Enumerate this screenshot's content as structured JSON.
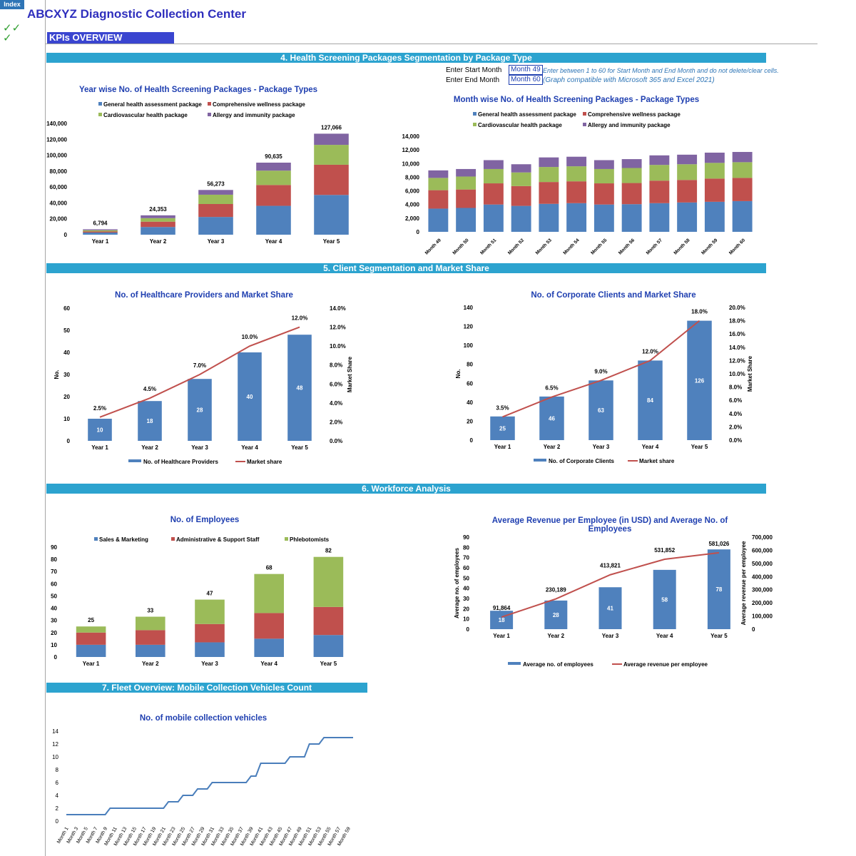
{
  "header": {
    "index_label": "Index",
    "title": "ABCXYZ Diagnostic Collection Center",
    "checkmarks": [
      "✓✓",
      "✓"
    ],
    "kpi_label": "KPIs OVERVIEW"
  },
  "sections": {
    "packages": "4. Health Screening Packages Segmentation by Package Type",
    "clients": "5. Client Segmentation and Market Share",
    "workforce": "6. Workforce Analysis",
    "fleet": "7. Fleet Overview: Mobile Collection Vehicles Count"
  },
  "controls": {
    "start_label": "Enter Start Month",
    "end_label": "Enter End Month",
    "start_value": "Month 49",
    "end_value": "Month 60",
    "note1": "Enter between 1 to 60 for Start Month and End Month and do not delete/clear cells.",
    "note2": "(Graph compatible with Microsoft 365 and Excel 2021)"
  },
  "colors": {
    "blue": "#4f81bd",
    "red": "#c0504d",
    "green": "#9bbb59",
    "purple": "#8064a2",
    "line": "#c0504d",
    "fleet": "#4a7ebb"
  },
  "chart_data": [
    {
      "id": "year_packages",
      "type": "bar",
      "stacked": true,
      "title": "Year wise No. of Health Screening Packages - Package Types",
      "categories": [
        "Year 1",
        "Year 2",
        "Year 3",
        "Year 4",
        "Year 5"
      ],
      "series": [
        {
          "name": "General health assessment package",
          "color": "#4f81bd",
          "values": [
            2700,
            9700,
            22300,
            36300,
            50000
          ]
        },
        {
          "name": "Comprehensive wellness package",
          "color": "#c0504d",
          "values": [
            1400,
            6700,
            16300,
            26200,
            38000
          ]
        },
        {
          "name": "Cardiovascular health package",
          "color": "#9bbb59",
          "values": [
            1500,
            4400,
            11700,
            18100,
            25000
          ]
        },
        {
          "name": "Allergy and immunity package",
          "color": "#8064a2",
          "values": [
            1194,
            3553,
            5973,
            10035,
            14066
          ]
        }
      ],
      "totals": [
        "6,794",
        "24,353",
        "56,273",
        "90,635",
        "127,066"
      ],
      "yticks": [
        "0",
        "20,000",
        "40,000",
        "60,000",
        "80,000",
        "100,000",
        "120,000",
        "140,000"
      ],
      "ylim": [
        0,
        140000
      ]
    },
    {
      "id": "month_packages",
      "type": "bar",
      "stacked": true,
      "title": "Month wise No. of Health Screening Packages - Package Types",
      "categories": [
        "Month 49",
        "Month 50",
        "Month 51",
        "Month 52",
        "Month 53",
        "Month 54",
        "Month 55",
        "Month 56",
        "Month 57",
        "Month 58",
        "Month 59",
        "Month 60"
      ],
      "series": [
        {
          "name": "General health assessment package",
          "color": "#4f81bd",
          "values": [
            3400,
            3500,
            4000,
            3800,
            4100,
            4200,
            4000,
            4050,
            4200,
            4300,
            4400,
            4500
          ]
        },
        {
          "name": "Comprehensive wellness package",
          "color": "#c0504d",
          "values": [
            2700,
            2700,
            3100,
            2900,
            3200,
            3200,
            3100,
            3100,
            3300,
            3300,
            3400,
            3400
          ]
        },
        {
          "name": "Cardiovascular health package",
          "color": "#9bbb59",
          "values": [
            1800,
            1900,
            2100,
            2000,
            2200,
            2200,
            2100,
            2200,
            2300,
            2300,
            2300,
            2300
          ]
        },
        {
          "name": "Allergy and immunity package",
          "color": "#8064a2",
          "values": [
            1100,
            1100,
            1300,
            1200,
            1400,
            1400,
            1300,
            1300,
            1400,
            1400,
            1500,
            1500
          ]
        }
      ],
      "yticks": [
        "0",
        "2,000",
        "4,000",
        "6,000",
        "8,000",
        "10,000",
        "12,000",
        "14,000"
      ],
      "ylim": [
        0,
        14000
      ]
    },
    {
      "id": "providers",
      "type": "bar",
      "title": "No. of Healthcare Providers and Market Share",
      "categories": [
        "Year 1",
        "Year 2",
        "Year 3",
        "Year 4",
        "Year 5"
      ],
      "bar_name": "No. of Healthcare Providers",
      "values": [
        10,
        18,
        28,
        40,
        48
      ],
      "line_name": "Market share",
      "line_values": [
        2.5,
        4.5,
        7.0,
        10.0,
        12.0
      ],
      "line_labels": [
        "2.5%",
        "4.5%",
        "7.0%",
        "10.0%",
        "12.0%"
      ],
      "ylabel": "No.",
      "y2label": "Market Share",
      "yticks": [
        "0",
        "10",
        "20",
        "30",
        "40",
        "50",
        "60"
      ],
      "y2ticks": [
        "0.0%",
        "2.0%",
        "4.0%",
        "6.0%",
        "8.0%",
        "10.0%",
        "12.0%",
        "14.0%"
      ],
      "ylim": [
        0,
        60
      ],
      "y2lim": [
        0,
        14
      ]
    },
    {
      "id": "corporate",
      "type": "bar",
      "title": "No. of Corporate Clients and Market Share",
      "categories": [
        "Year 1",
        "Year 2",
        "Year 3",
        "Year 4",
        "Year 5"
      ],
      "bar_name": "No. of Corporate Clients",
      "values": [
        25,
        46,
        63,
        84,
        126
      ],
      "line_name": "Market share",
      "line_values": [
        3.5,
        6.5,
        9.0,
        12.0,
        18.0
      ],
      "line_labels": [
        "3.5%",
        "6.5%",
        "9.0%",
        "12.0%",
        "18.0%"
      ],
      "ylabel": "No.",
      "y2label": "Market Share",
      "yticks": [
        "0",
        "20",
        "40",
        "60",
        "80",
        "100",
        "120",
        "140"
      ],
      "y2ticks": [
        "0.0%",
        "2.0%",
        "4.0%",
        "6.0%",
        "8.0%",
        "10.0%",
        "12.0%",
        "14.0%",
        "16.0%",
        "18.0%",
        "20.0%"
      ],
      "ylim": [
        0,
        140
      ],
      "y2lim": [
        0,
        20
      ]
    },
    {
      "id": "employees",
      "type": "bar",
      "stacked": true,
      "title": "No. of Employees",
      "categories": [
        "Year 1",
        "Year 2",
        "Year 3",
        "Year 4",
        "Year 5"
      ],
      "series": [
        {
          "name": "Sales & Marketing",
          "color": "#4f81bd",
          "values": [
            10,
            10,
            12,
            15,
            18
          ]
        },
        {
          "name": "Administrative & Support Staff",
          "color": "#c0504d",
          "values": [
            10,
            12,
            15,
            21,
            23
          ]
        },
        {
          "name": "Phlebotomists",
          "color": "#9bbb59",
          "values": [
            5,
            11,
            20,
            32,
            41
          ]
        }
      ],
      "totals": [
        "25",
        "33",
        "47",
        "68",
        "82"
      ],
      "yticks": [
        "0",
        "10",
        "20",
        "30",
        "40",
        "50",
        "60",
        "70",
        "80",
        "90"
      ],
      "ylim": [
        0,
        90
      ]
    },
    {
      "id": "revenue_per_employee",
      "type": "bar",
      "title": "Average Revenue per Employee (in USD) and Average No. of Employees",
      "categories": [
        "Year 1",
        "Year 2",
        "Year 3",
        "Year 4",
        "Year 5"
      ],
      "bar_name": "Average no. of employees",
      "values": [
        18,
        28,
        41,
        58,
        78
      ],
      "line_name": "Average revenue per employee",
      "line_values": [
        91864,
        230189,
        413821,
        531852,
        581026
      ],
      "line_labels": [
        "91,864",
        "230,189",
        "413,821",
        "531,852",
        "581,026"
      ],
      "ylabel": "Average no. of employees",
      "y2label": "Average revenue per employee",
      "yticks": [
        "0",
        "10",
        "20",
        "30",
        "40",
        "50",
        "60",
        "70",
        "80",
        "90"
      ],
      "y2ticks": [
        "0",
        "100,000",
        "200,000",
        "300,000",
        "400,000",
        "500,000",
        "600,000",
        "700,000"
      ],
      "ylim": [
        0,
        90
      ],
      "y2lim": [
        0,
        700000
      ]
    },
    {
      "id": "fleet",
      "type": "line",
      "title": "No. of mobile collection vehicles",
      "x": [
        "Month 1",
        "Month 2",
        "Month 3",
        "Month 4",
        "Month 5",
        "Month 6",
        "Month 7",
        "Month 8",
        "Month 9",
        "Month 10",
        "Month 11",
        "Month 12",
        "Month 13",
        "Month 14",
        "Month 15",
        "Month 16",
        "Month 17",
        "Month 18",
        "Month 19",
        "Month 20",
        "Month 21",
        "Month 22",
        "Month 23",
        "Month 24",
        "Month 25",
        "Month 26",
        "Month 27",
        "Month 28",
        "Month 29",
        "Month 30",
        "Month 31",
        "Month 32",
        "Month 33",
        "Month 34",
        "Month 35",
        "Month 36",
        "Month 37",
        "Month 38",
        "Month 39",
        "Month 40",
        "Month 41",
        "Month 42",
        "Month 43",
        "Month 44",
        "Month 45",
        "Month 46",
        "Month 47",
        "Month 48",
        "Month 49",
        "Month 50",
        "Month 51",
        "Month 52",
        "Month 53",
        "Month 54",
        "Month 55",
        "Month 56",
        "Month 57",
        "Month 58",
        "Month 59",
        "Month 60"
      ],
      "xtick_labels": [
        "Month 1",
        "Month 3",
        "Month 5",
        "Month 7",
        "Month 9",
        "Month 11",
        "Month 13",
        "Month 15",
        "Month 17",
        "Month 19",
        "Month 21",
        "Month 23",
        "Month 25",
        "Month 27",
        "Month 29",
        "Month 31",
        "Month 33",
        "Month 35",
        "Month 37",
        "Month 39",
        "Month 41",
        "Month 43",
        "Month 45",
        "Month 47",
        "Month 49",
        "Month 51",
        "Month 53",
        "Month 55",
        "Month 57",
        "Month 59"
      ],
      "values": [
        1,
        1,
        1,
        1,
        1,
        1,
        1,
        1,
        1,
        2,
        2,
        2,
        2,
        2,
        2,
        2,
        2,
        2,
        2,
        2,
        2,
        3,
        3,
        3,
        4,
        4,
        4,
        5,
        5,
        5,
        6,
        6,
        6,
        6,
        6,
        6,
        6,
        6,
        7,
        7,
        9,
        9,
        9,
        9,
        9,
        9,
        10,
        10,
        10,
        10,
        12,
        12,
        12,
        13,
        13,
        13,
        13,
        13,
        13,
        13
      ],
      "yticks": [
        "0",
        "2",
        "4",
        "6",
        "8",
        "10",
        "12",
        "14"
      ],
      "ylim": [
        0,
        14
      ]
    }
  ]
}
